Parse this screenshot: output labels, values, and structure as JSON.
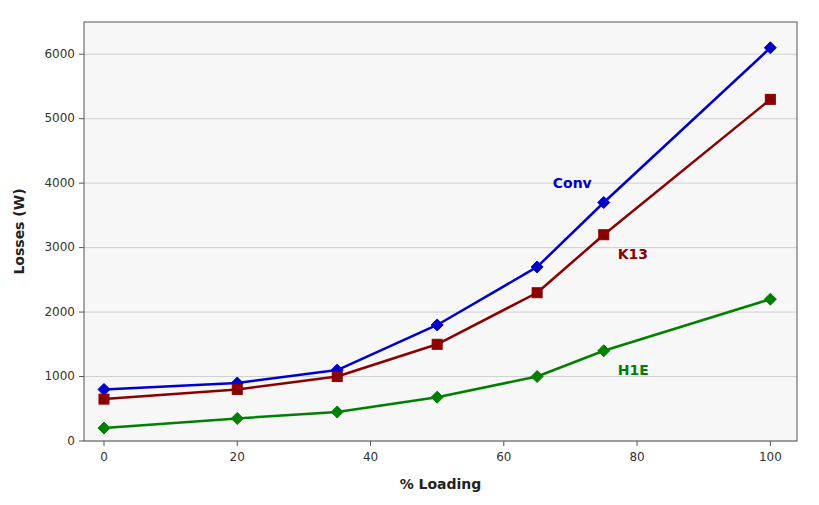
{
  "chart_data": {
    "type": "line",
    "x": [
      0,
      20,
      35,
      50,
      65,
      75,
      100
    ],
    "series": [
      {
        "name": "Conv",
        "color": "#0000CC",
        "marker": "diamond",
        "values": [
          800,
          900,
          1100,
          1800,
          2700,
          3700,
          6100
        ]
      },
      {
        "name": "K13",
        "color": "#8B0000",
        "marker": "square",
        "values": [
          650,
          800,
          1000,
          1500,
          2300,
          3200,
          5300
        ]
      },
      {
        "name": "H1E",
        "color": "#008000",
        "marker": "diamond",
        "values": [
          200,
          350,
          450,
          680,
          1000,
          1400,
          2200
        ]
      }
    ],
    "x_label": "% Loading",
    "y_label": "Losses (W)",
    "xlim": [
      -3,
      104
    ],
    "ylim": [
      0,
      6500
    ],
    "xticks": [
      0,
      20,
      40,
      60,
      80,
      100
    ],
    "yticks": [
      0,
      1000,
      2000,
      3000,
      4000,
      5000,
      6000
    ],
    "grid": true
  }
}
